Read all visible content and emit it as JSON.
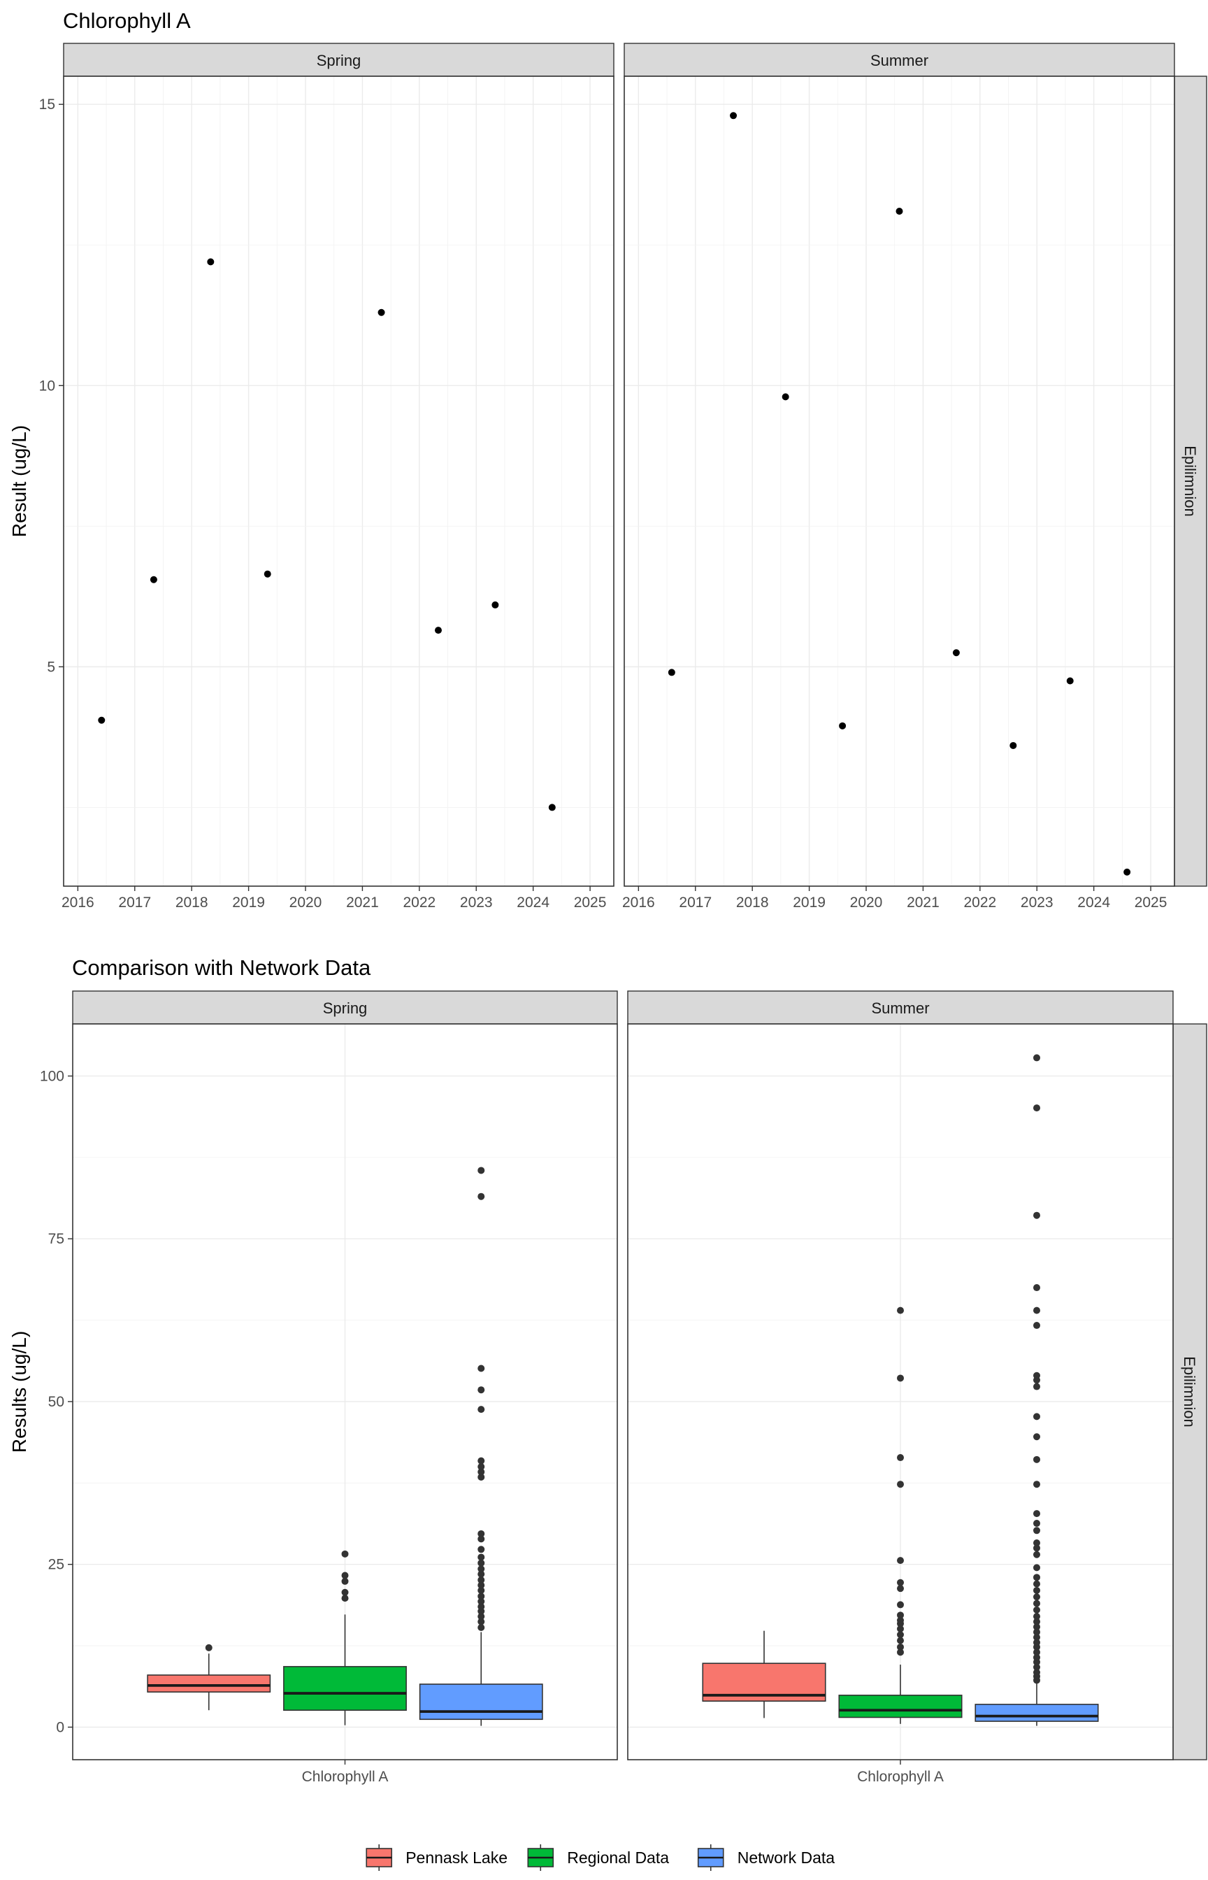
{
  "chart_data": [
    {
      "type": "scatter",
      "title": "Chlorophyll A",
      "xlabel": "",
      "ylabel": "Result (ug/L)",
      "x_ticks": [
        "2016",
        "2017",
        "2018",
        "2019",
        "2020",
        "2021",
        "2022",
        "2023",
        "2024",
        "2025"
      ],
      "y_ticks": [
        "5",
        "10",
        "15"
      ],
      "xlim": [
        "2015-10",
        "2025-06"
      ],
      "ylim": [
        1.1,
        15.5
      ],
      "grid": true,
      "facet_row": "Epilimnion",
      "panels": [
        {
          "name": "Spring",
          "points": [
            {
              "x": "2016-06",
              "y": 4.05
            },
            {
              "x": "2017-05",
              "y": 6.55
            },
            {
              "x": "2018-05",
              "y": 12.2
            },
            {
              "x": "2019-05",
              "y": 6.65
            },
            {
              "x": "2021-05",
              "y": 11.3
            },
            {
              "x": "2022-05",
              "y": 5.65
            },
            {
              "x": "2023-05",
              "y": 6.1
            },
            {
              "x": "2024-05",
              "y": 2.5
            }
          ]
        },
        {
          "name": "Summer",
          "points": [
            {
              "x": "2016-08",
              "y": 4.9
            },
            {
              "x": "2017-09",
              "y": 14.8
            },
            {
              "x": "2018-08",
              "y": 9.8
            },
            {
              "x": "2019-08",
              "y": 3.95
            },
            {
              "x": "2020-08",
              "y": 13.1
            },
            {
              "x": "2021-08",
              "y": 5.25
            },
            {
              "x": "2022-08",
              "y": 3.6
            },
            {
              "x": "2023-08",
              "y": 4.75
            },
            {
              "x": "2024-08",
              "y": 1.35
            }
          ]
        }
      ]
    },
    {
      "type": "box",
      "title": "Comparison with Network Data",
      "xlabel": "",
      "ylabel": "Results (ug/L)",
      "y_ticks": [
        "0",
        "25",
        "50",
        "75",
        "100"
      ],
      "ylim": [
        -5,
        108
      ],
      "grid": true,
      "facet_row": "Epilimnion",
      "category": "Chlorophyll A",
      "legend": {
        "position": "bottom",
        "entries": [
          {
            "name": "Pennask Lake",
            "color": "#F8766D"
          },
          {
            "name": "Regional Data",
            "color": "#00BA38"
          },
          {
            "name": "Network Data",
            "color": "#619CFF"
          }
        ]
      },
      "panels": [
        {
          "name": "Spring",
          "series": [
            {
              "name": "Pennask Lake",
              "whisker_low": 2.6,
              "q1": 5.4,
              "median": 6.4,
              "q3": 8.0,
              "whisker_high": 11.3,
              "outliers": [
                12.2
              ]
            },
            {
              "name": "Regional Data",
              "whisker_low": 0.3,
              "q1": 2.6,
              "median": 5.2,
              "q3": 9.3,
              "whisker_high": 17.3,
              "outliers": [
                19.8,
                20.7,
                22.4,
                23.3,
                26.6
              ]
            },
            {
              "name": "Network Data",
              "whisker_low": 0.2,
              "q1": 1.2,
              "median": 2.4,
              "q3": 6.6,
              "whisker_high": 14.6,
              "outliers": [
                15.3,
                16.2,
                17.0,
                17.8,
                18.5,
                19.3,
                20.1,
                21.0,
                21.8,
                22.6,
                23.5,
                24.3,
                25.2,
                26.1,
                27.3,
                28.9,
                29.7,
                38.4,
                39.2,
                40.0,
                40.9,
                48.8,
                51.8,
                55.1,
                81.5,
                85.5
              ]
            }
          ]
        },
        {
          "name": "Summer",
          "series": [
            {
              "name": "Pennask Lake",
              "whisker_low": 1.4,
              "q1": 4.0,
              "median": 4.9,
              "q3": 9.8,
              "whisker_high": 14.8,
              "outliers": []
            },
            {
              "name": "Regional Data",
              "whisker_low": 0.5,
              "q1": 1.5,
              "median": 2.6,
              "q3": 4.9,
              "whisker_high": 9.6,
              "outliers": [
                11.5,
                12.3,
                13.3,
                14.2,
                15.1,
                15.9,
                16.4,
                17.2,
                18.8,
                21.3,
                22.2,
                25.6,
                37.3,
                41.4,
                53.6,
                64.0
              ]
            },
            {
              "name": "Network Data",
              "whisker_low": 0.2,
              "q1": 0.9,
              "median": 1.7,
              "q3": 3.5,
              "whisker_high": 6.8,
              "outliers": [
                7.2,
                7.8,
                8.4,
                9.2,
                10.0,
                10.7,
                11.5,
                12.3,
                13.0,
                13.8,
                14.6,
                15.4,
                16.2,
                17.0,
                18.0,
                19.0,
                20.0,
                21.0,
                22.0,
                23.0,
                24.5,
                26.5,
                27.5,
                28.3,
                30.2,
                31.3,
                32.8,
                37.3,
                41.1,
                44.6,
                47.7,
                52.3,
                53.3,
                54.0,
                61.7,
                64.0,
                67.5,
                78.6,
                95.1,
                102.8
              ]
            }
          ]
        }
      ]
    }
  ]
}
